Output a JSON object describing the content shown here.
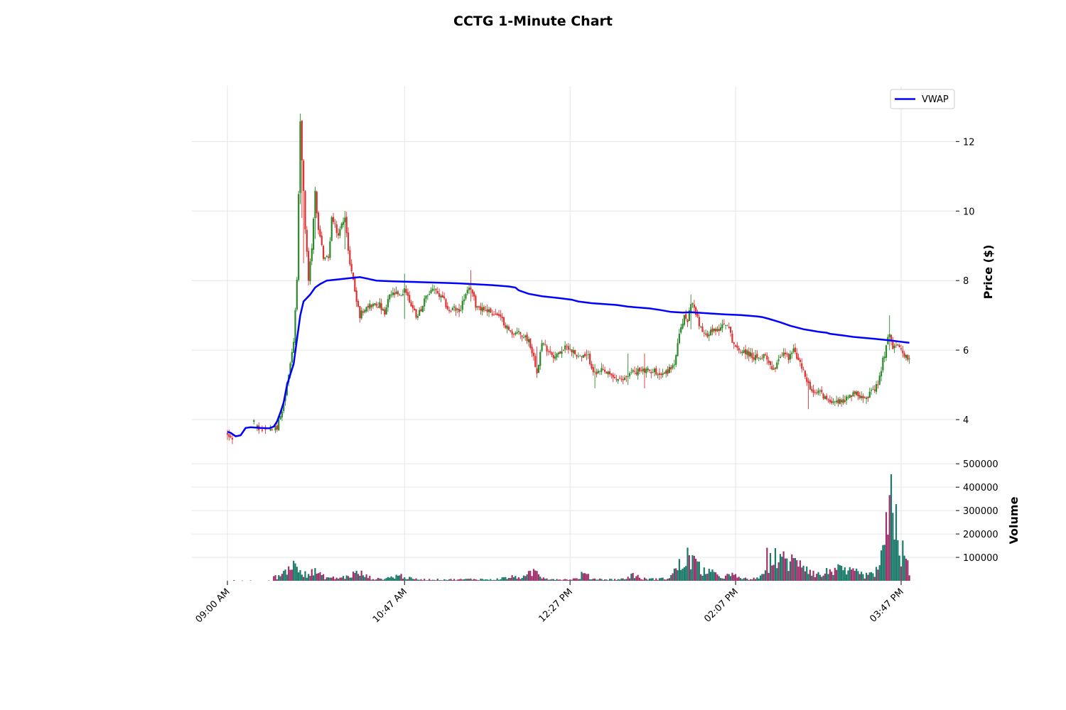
{
  "chart_data": {
    "type": "candlestick",
    "title": "CCTG 1-Minute Chart",
    "price_axis": {
      "label": "Price ($)",
      "ticks": [
        4,
        6,
        8,
        10,
        12
      ],
      "ylim": [
        3.0,
        13.6
      ]
    },
    "volume_axis": {
      "label": "Volume",
      "ticks": [
        100000,
        200000,
        300000,
        400000,
        500000
      ],
      "ylim": [
        0,
        540000
      ]
    },
    "x_axis": {
      "start_minute": 0,
      "end_minute": 412,
      "ticks": [
        {
          "minute": 0,
          "label": "09:00 AM"
        },
        {
          "minute": 107,
          "label": "10:47 AM"
        },
        {
          "minute": 207,
          "label": "12:27 PM"
        },
        {
          "minute": 307,
          "label": "02:07 PM"
        },
        {
          "minute": 407,
          "label": "03:47 PM"
        }
      ]
    },
    "legend": {
      "position": "top-right",
      "entries": [
        {
          "name": "VWAP",
          "color": "#0000ff"
        }
      ]
    },
    "colors": {
      "up": "#2a8a2a",
      "down": "#e03030",
      "vol_up": "#1a7a6a",
      "vol_down": "#a0306a",
      "vwap": "#0000ff"
    },
    "price_path": [
      [
        0,
        3.6
      ],
      [
        5,
        3.4
      ],
      [
        10,
        3.8
      ],
      [
        14,
        4.0
      ],
      [
        20,
        3.7
      ],
      [
        25,
        3.65
      ],
      [
        30,
        3.75
      ],
      [
        33,
        4.3
      ],
      [
        37,
        5.2
      ],
      [
        40,
        6.3
      ],
      [
        42,
        8.0
      ],
      [
        43,
        10.5
      ],
      [
        44,
        12.5
      ],
      [
        45,
        11.5
      ],
      [
        47,
        9.5
      ],
      [
        49,
        8.0
      ],
      [
        51,
        9.0
      ],
      [
        53,
        10.5
      ],
      [
        55,
        9.5
      ],
      [
        58,
        8.7
      ],
      [
        61,
        8.6
      ],
      [
        63,
        9.8
      ],
      [
        67,
        9.3
      ],
      [
        71,
        9.9
      ],
      [
        73,
        8.8
      ],
      [
        76,
        8.0
      ],
      [
        78,
        7.4
      ],
      [
        80,
        7.0
      ],
      [
        84,
        7.3
      ],
      [
        88,
        7.3
      ],
      [
        92,
        7.3
      ],
      [
        95,
        7.0
      ],
      [
        98,
        7.6
      ],
      [
        102,
        7.6
      ],
      [
        105,
        7.5
      ],
      [
        107,
        7.8
      ],
      [
        110,
        7.4
      ],
      [
        114,
        7.0
      ],
      [
        116,
        7.1
      ],
      [
        120,
        7.5
      ],
      [
        124,
        7.8
      ],
      [
        127,
        7.6
      ],
      [
        131,
        7.4
      ],
      [
        134,
        7.1
      ],
      [
        137,
        7.2
      ],
      [
        140,
        7.1
      ],
      [
        143,
        7.5
      ],
      [
        147,
        7.8
      ],
      [
        150,
        7.3
      ],
      [
        154,
        7.2
      ],
      [
        159,
        7.1
      ],
      [
        163,
        7.0
      ],
      [
        167,
        6.8
      ],
      [
        171,
        6.5
      ],
      [
        175,
        6.5
      ],
      [
        179,
        6.4
      ],
      [
        182,
        6.3
      ],
      [
        185,
        5.8
      ],
      [
        187,
        5.4
      ],
      [
        190,
        6.2
      ],
      [
        194,
        6.0
      ],
      [
        198,
        5.8
      ],
      [
        202,
        6.0
      ],
      [
        206,
        6.1
      ],
      [
        210,
        5.9
      ],
      [
        214,
        5.8
      ],
      [
        218,
        5.8
      ],
      [
        222,
        5.3
      ],
      [
        226,
        5.4
      ],
      [
        230,
        5.3
      ],
      [
        234,
        5.2
      ],
      [
        238,
        5.1
      ],
      [
        242,
        5.3
      ],
      [
        246,
        5.4
      ],
      [
        250,
        5.4
      ],
      [
        254,
        5.4
      ],
      [
        258,
        5.4
      ],
      [
        262,
        5.3
      ],
      [
        266,
        5.4
      ],
      [
        270,
        5.6
      ],
      [
        273,
        6.4
      ],
      [
        276,
        7.0
      ],
      [
        278,
        6.8
      ],
      [
        280,
        7.4
      ],
      [
        283,
        7.1
      ],
      [
        286,
        6.6
      ],
      [
        289,
        6.4
      ],
      [
        292,
        6.6
      ],
      [
        295,
        6.5
      ],
      [
        298,
        6.7
      ],
      [
        301,
        6.8
      ],
      [
        303,
        6.6
      ],
      [
        305,
        6.3
      ],
      [
        308,
        6.0
      ],
      [
        312,
        6.0
      ],
      [
        315,
        5.9
      ],
      [
        318,
        5.8
      ],
      [
        321,
        5.7
      ],
      [
        324,
        5.9
      ],
      [
        327,
        5.7
      ],
      [
        330,
        5.4
      ],
      [
        333,
        5.8
      ],
      [
        336,
        5.9
      ],
      [
        339,
        5.8
      ],
      [
        342,
        6.0
      ],
      [
        345,
        5.7
      ],
      [
        348,
        5.4
      ],
      [
        351,
        5.0
      ],
      [
        354,
        4.7
      ],
      [
        357,
        4.8
      ],
      [
        360,
        4.7
      ],
      [
        363,
        4.5
      ],
      [
        366,
        4.6
      ],
      [
        369,
        4.5
      ],
      [
        372,
        4.6
      ],
      [
        375,
        4.6
      ],
      [
        378,
        4.8
      ],
      [
        381,
        4.7
      ],
      [
        384,
        4.7
      ],
      [
        387,
        4.7
      ],
      [
        390,
        4.8
      ],
      [
        393,
        5.0
      ],
      [
        396,
        5.7
      ],
      [
        398,
        6.1
      ],
      [
        400,
        6.5
      ],
      [
        402,
        6.1
      ],
      [
        404,
        6.2
      ],
      [
        406,
        6.0
      ],
      [
        408,
        6.0
      ],
      [
        410,
        5.8
      ],
      [
        412,
        5.7
      ]
    ],
    "vwap_path": [
      [
        0,
        3.65
      ],
      [
        2,
        3.62
      ],
      [
        5,
        3.52
      ],
      [
        8,
        3.55
      ],
      [
        11,
        3.76
      ],
      [
        14,
        3.78
      ],
      [
        20,
        3.76
      ],
      [
        25,
        3.75
      ],
      [
        28,
        3.8
      ],
      [
        30,
        3.95
      ],
      [
        32,
        4.2
      ],
      [
        34,
        4.5
      ],
      [
        36,
        5.0
      ],
      [
        38,
        5.3
      ],
      [
        40,
        5.6
      ],
      [
        42,
        6.3
      ],
      [
        44,
        7.0
      ],
      [
        46,
        7.4
      ],
      [
        48,
        7.5
      ],
      [
        50,
        7.6
      ],
      [
        53,
        7.8
      ],
      [
        56,
        7.9
      ],
      [
        60,
        8.0
      ],
      [
        70,
        8.05
      ],
      [
        80,
        8.1
      ],
      [
        85,
        8.05
      ],
      [
        90,
        8.0
      ],
      [
        100,
        7.98
      ],
      [
        120,
        7.95
      ],
      [
        140,
        7.92
      ],
      [
        160,
        7.87
      ],
      [
        170,
        7.83
      ],
      [
        174,
        7.8
      ],
      [
        176,
        7.72
      ],
      [
        182,
        7.62
      ],
      [
        190,
        7.55
      ],
      [
        200,
        7.5
      ],
      [
        208,
        7.45
      ],
      [
        212,
        7.4
      ],
      [
        220,
        7.35
      ],
      [
        235,
        7.3
      ],
      [
        242,
        7.25
      ],
      [
        255,
        7.2
      ],
      [
        262,
        7.15
      ],
      [
        268,
        7.1
      ],
      [
        275,
        7.08
      ],
      [
        280,
        7.09
      ],
      [
        290,
        7.06
      ],
      [
        300,
        7.03
      ],
      [
        310,
        7.01
      ],
      [
        320,
        6.97
      ],
      [
        323,
        6.95
      ],
      [
        327,
        6.9
      ],
      [
        334,
        6.8
      ],
      [
        340,
        6.7
      ],
      [
        348,
        6.6
      ],
      [
        357,
        6.53
      ],
      [
        362,
        6.5
      ],
      [
        364,
        6.47
      ],
      [
        372,
        6.42
      ],
      [
        378,
        6.38
      ],
      [
        390,
        6.33
      ],
      [
        400,
        6.28
      ],
      [
        410,
        6.22
      ],
      [
        412,
        6.21
      ]
    ],
    "spikes": [
      {
        "minute": 44,
        "high": 12.8,
        "low": 10.2
      },
      {
        "minute": 45,
        "high": 12.6,
        "low": 9.8
      },
      {
        "minute": 46,
        "high": 11.5,
        "low": 8.5
      },
      {
        "minute": 53,
        "high": 10.7,
        "low": 9.2
      },
      {
        "minute": 71,
        "high": 10.0,
        "low": 8.9
      },
      {
        "minute": 107,
        "high": 8.2,
        "low": 6.9
      },
      {
        "minute": 147,
        "high": 8.3,
        "low": 7.4
      },
      {
        "minute": 187,
        "high": 6.1,
        "low": 5.2
      },
      {
        "minute": 222,
        "high": 5.6,
        "low": 4.9
      },
      {
        "minute": 242,
        "high": 5.9,
        "low": 5.0
      },
      {
        "minute": 252,
        "high": 5.9,
        "low": 4.9
      },
      {
        "minute": 280,
        "high": 7.6,
        "low": 6.6
      },
      {
        "minute": 351,
        "high": 5.2,
        "low": 4.3
      },
      {
        "minute": 400,
        "high": 7.0,
        "low": 6.0
      }
    ],
    "volume_path": [
      [
        0,
        2000
      ],
      [
        10,
        2000
      ],
      [
        20,
        3000
      ],
      [
        26,
        4000
      ],
      [
        28,
        20000
      ],
      [
        30,
        15000
      ],
      [
        32,
        25000
      ],
      [
        34,
        40000
      ],
      [
        36,
        60000
      ],
      [
        38,
        75000
      ],
      [
        40,
        65000
      ],
      [
        42,
        85000
      ],
      [
        44,
        75000
      ],
      [
        46,
        45000
      ],
      [
        48,
        35000
      ],
      [
        50,
        30000
      ],
      [
        53,
        45000
      ],
      [
        56,
        25000
      ],
      [
        60,
        15000
      ],
      [
        66,
        12000
      ],
      [
        72,
        18000
      ],
      [
        76,
        30000
      ],
      [
        80,
        35000
      ],
      [
        84,
        20000
      ],
      [
        88,
        10000
      ],
      [
        92,
        8000
      ],
      [
        96,
        12000
      ],
      [
        100,
        18000
      ],
      [
        104,
        25000
      ],
      [
        108,
        15000
      ],
      [
        112,
        8000
      ],
      [
        120,
        6000
      ],
      [
        130,
        6000
      ],
      [
        140,
        6000
      ],
      [
        150,
        8000
      ],
      [
        160,
        5000
      ],
      [
        165,
        10000
      ],
      [
        170,
        15000
      ],
      [
        175,
        18000
      ],
      [
        180,
        15000
      ],
      [
        183,
        35000
      ],
      [
        186,
        45000
      ],
      [
        190,
        20000
      ],
      [
        195,
        8000
      ],
      [
        205,
        6000
      ],
      [
        212,
        10000
      ],
      [
        215,
        35000
      ],
      [
        220,
        10000
      ],
      [
        230,
        6000
      ],
      [
        240,
        8000
      ],
      [
        245,
        30000
      ],
      [
        250,
        10000
      ],
      [
        258,
        8000
      ],
      [
        265,
        10000
      ],
      [
        268,
        25000
      ],
      [
        271,
        50000
      ],
      [
        274,
        75000
      ],
      [
        277,
        80000
      ],
      [
        279,
        125000
      ],
      [
        282,
        85000
      ],
      [
        285,
        55000
      ],
      [
        290,
        45000
      ],
      [
        295,
        25000
      ],
      [
        300,
        20000
      ],
      [
        305,
        25000
      ],
      [
        310,
        12000
      ],
      [
        315,
        8000
      ],
      [
        320,
        10000
      ],
      [
        323,
        20000
      ],
      [
        325,
        100000
      ],
      [
        328,
        90000
      ],
      [
        331,
        120000
      ],
      [
        334,
        80000
      ],
      [
        337,
        100000
      ],
      [
        340,
        90000
      ],
      [
        343,
        80000
      ],
      [
        346,
        110000
      ],
      [
        349,
        75000
      ],
      [
        352,
        50000
      ],
      [
        356,
        30000
      ],
      [
        360,
        25000
      ],
      [
        365,
        60000
      ],
      [
        370,
        45000
      ],
      [
        375,
        40000
      ],
      [
        380,
        35000
      ],
      [
        385,
        25000
      ],
      [
        390,
        25000
      ],
      [
        393,
        60000
      ],
      [
        396,
        110000
      ],
      [
        398,
        200000
      ],
      [
        400,
        290000
      ],
      [
        402,
        400000
      ],
      [
        404,
        300000
      ],
      [
        406,
        150000
      ],
      [
        408,
        120000
      ],
      [
        410,
        80000
      ],
      [
        412,
        50000
      ]
    ]
  }
}
